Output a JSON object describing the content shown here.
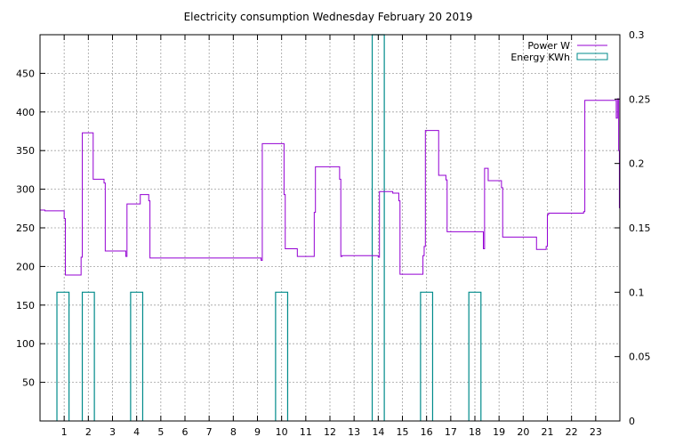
{
  "chart_data": {
    "type": "line",
    "title": "Electricity consumption Wednesday February 20 2019",
    "xlabel": "",
    "ylabel": "",
    "y2label": "",
    "grid": true,
    "legend_position": "top-right",
    "xlim": [
      0,
      24
    ],
    "ylim": [
      0,
      500
    ],
    "y2lim": [
      0,
      0.3
    ],
    "x_ticks": [
      1,
      2,
      3,
      4,
      5,
      6,
      7,
      8,
      9,
      10,
      11,
      12,
      13,
      14,
      15,
      16,
      17,
      18,
      19,
      20,
      21,
      22,
      23
    ],
    "y_ticks": [
      50,
      100,
      150,
      200,
      250,
      300,
      350,
      400,
      450
    ],
    "y2_ticks": [
      0,
      0.05,
      0.1,
      0.15,
      0.2,
      0.25,
      0.3
    ],
    "series": [
      {
        "name": "Power W",
        "axis": "y1",
        "color": "#9400d3",
        "style": "steps",
        "points": [
          [
            0,
            273
          ],
          [
            0.2,
            273
          ],
          [
            0.2,
            272
          ],
          [
            1.0,
            272
          ],
          [
            1.0,
            262
          ],
          [
            1.05,
            262
          ],
          [
            1.05,
            189
          ],
          [
            1.7,
            189
          ],
          [
            1.7,
            212
          ],
          [
            1.75,
            212
          ],
          [
            1.75,
            373
          ],
          [
            2.2,
            373
          ],
          [
            2.2,
            313
          ],
          [
            2.65,
            313
          ],
          [
            2.65,
            308
          ],
          [
            2.7,
            308
          ],
          [
            2.7,
            220
          ],
          [
            3.55,
            220
          ],
          [
            3.55,
            213
          ],
          [
            3.6,
            213
          ],
          [
            3.6,
            281
          ],
          [
            4.15,
            281
          ],
          [
            4.15,
            293
          ],
          [
            4.5,
            293
          ],
          [
            4.5,
            285
          ],
          [
            4.55,
            285
          ],
          [
            4.55,
            211
          ],
          [
            9.15,
            211
          ],
          [
            9.15,
            208
          ],
          [
            9.2,
            208
          ],
          [
            9.2,
            359
          ],
          [
            10.1,
            359
          ],
          [
            10.1,
            293
          ],
          [
            10.15,
            293
          ],
          [
            10.15,
            223
          ],
          [
            10.65,
            223
          ],
          [
            10.65,
            213
          ],
          [
            11.35,
            213
          ],
          [
            11.35,
            270
          ],
          [
            11.4,
            270
          ],
          [
            11.4,
            329
          ],
          [
            12.4,
            329
          ],
          [
            12.4,
            313
          ],
          [
            12.45,
            313
          ],
          [
            12.45,
            213
          ],
          [
            12.5,
            213
          ],
          [
            12.5,
            214
          ],
          [
            14.0,
            214
          ],
          [
            14.0,
            212
          ],
          [
            14.05,
            212
          ],
          [
            14.05,
            297
          ],
          [
            14.6,
            297
          ],
          [
            14.6,
            295
          ],
          [
            14.85,
            295
          ],
          [
            14.85,
            285
          ],
          [
            14.9,
            285
          ],
          [
            14.9,
            190
          ],
          [
            15.85,
            190
          ],
          [
            15.85,
            214
          ],
          [
            15.9,
            214
          ],
          [
            15.9,
            226
          ],
          [
            15.95,
            226
          ],
          [
            15.95,
            376
          ],
          [
            16.5,
            376
          ],
          [
            16.5,
            318
          ],
          [
            16.8,
            318
          ],
          [
            16.8,
            312
          ],
          [
            16.85,
            312
          ],
          [
            16.85,
            245
          ],
          [
            18.35,
            245
          ],
          [
            18.35,
            223
          ],
          [
            18.4,
            223
          ],
          [
            18.4,
            327
          ],
          [
            18.55,
            327
          ],
          [
            18.55,
            311
          ],
          [
            19.1,
            311
          ],
          [
            19.1,
            302
          ],
          [
            19.15,
            302
          ],
          [
            19.15,
            238
          ],
          [
            20.55,
            238
          ],
          [
            20.55,
            222
          ],
          [
            20.95,
            222
          ],
          [
            20.95,
            226
          ],
          [
            21.0,
            226
          ],
          [
            21.0,
            267
          ],
          [
            21.05,
            267
          ],
          [
            21.05,
            269
          ],
          [
            22.5,
            269
          ],
          [
            22.5,
            271
          ],
          [
            22.55,
            271
          ],
          [
            22.55,
            415
          ],
          [
            23.85,
            415
          ],
          [
            23.85,
            392
          ],
          [
            23.9,
            392
          ],
          [
            23.9,
            417
          ],
          [
            23.95,
            417
          ],
          [
            23.95,
            350
          ],
          [
            23.98,
            350
          ],
          [
            23.98,
            276
          ],
          [
            24.0,
            276
          ]
        ]
      },
      {
        "name": "Energy KWh",
        "axis": "y2",
        "color": "#008b8b",
        "style": "boxes",
        "bars": [
          {
            "x0": 0.7,
            "x1": 1.2,
            "value": 0.1
          },
          {
            "x0": 1.75,
            "x1": 2.25,
            "value": 0.1
          },
          {
            "x0": 3.75,
            "x1": 4.25,
            "value": 0.1
          },
          {
            "x0": 13.75,
            "x1": 14.25,
            "value": 0.3
          },
          {
            "x0": 15.75,
            "x1": 16.25,
            "value": 0.1
          },
          {
            "x0": 9.75,
            "x1": 10.25,
            "value": 0.1
          },
          {
            "x0": 17.75,
            "x1": 18.25,
            "value": 0.1
          }
        ]
      }
    ]
  }
}
